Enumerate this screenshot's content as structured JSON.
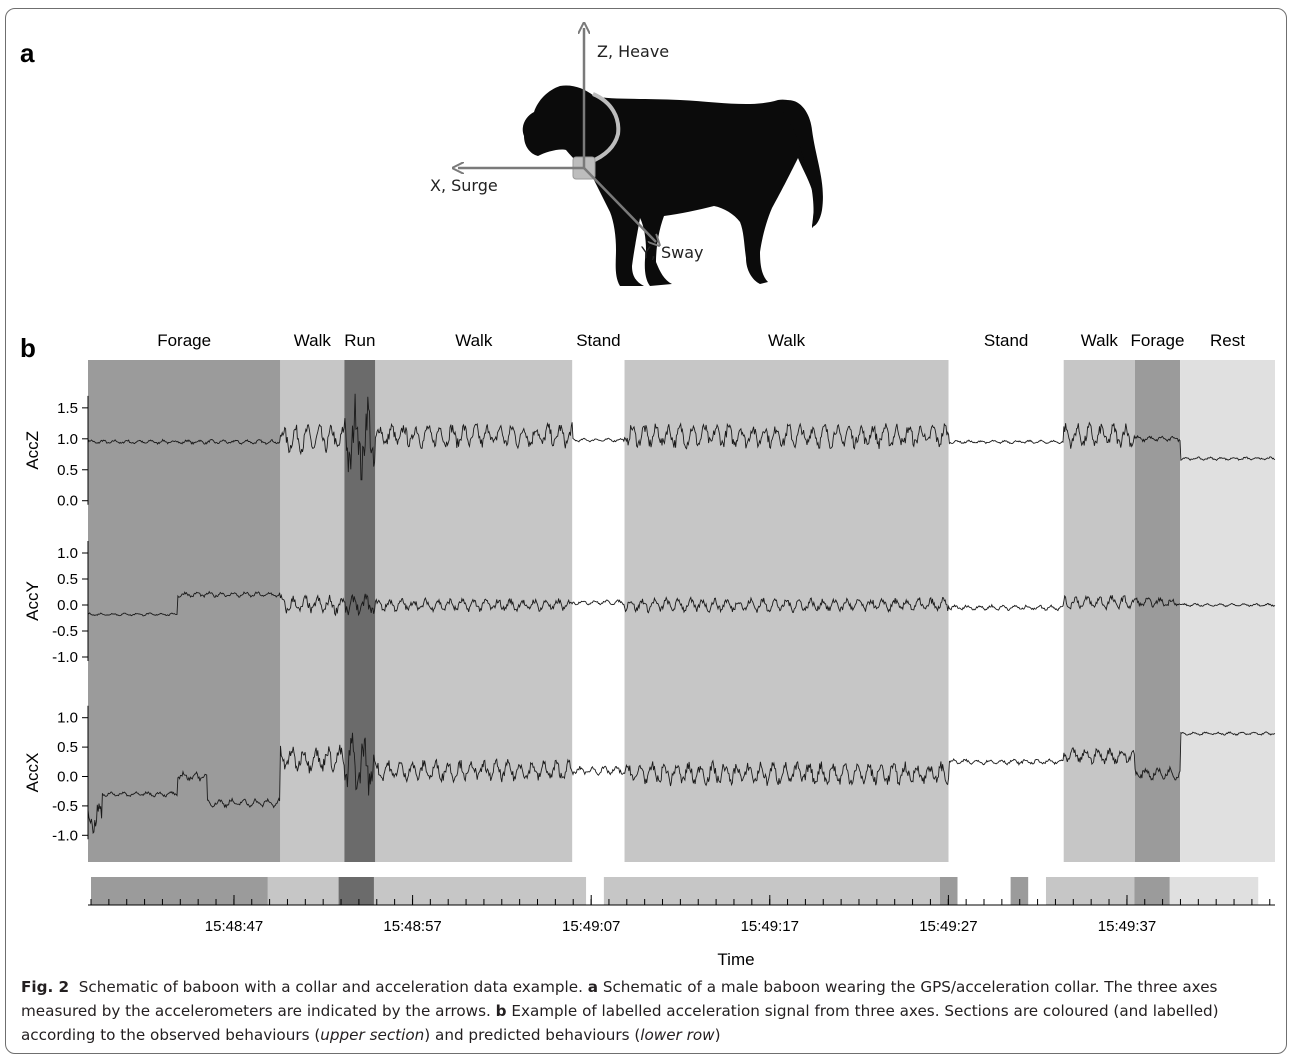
{
  "panel_a": {
    "label": "a",
    "axes": {
      "z": "Z, Heave",
      "x": "X, Surge",
      "y": "Y, Sway"
    },
    "icon": "baboon-silhouette"
  },
  "panel_b": {
    "label": "b"
  },
  "chart_data": {
    "type": "line",
    "xlabel": "Time",
    "x_ticks": [
      "15:48:47",
      "15:48:57",
      "15:49:07",
      "15:49:17",
      "15:49:27",
      "15:49:37"
    ],
    "behaviour_segments_observed": [
      {
        "label": "Forage",
        "start": 0.0,
        "end": 0.162,
        "shade": "#9b9b9b"
      },
      {
        "label": "Walk",
        "start": 0.162,
        "end": 0.216,
        "shade": "#c6c6c6"
      },
      {
        "label": "Run",
        "start": 0.216,
        "end": 0.242,
        "shade": "#6b6b6b"
      },
      {
        "label": "Walk",
        "start": 0.242,
        "end": 0.408,
        "shade": "#c6c6c6"
      },
      {
        "label": "Stand",
        "start": 0.408,
        "end": 0.452,
        "shade": "#ffffff"
      },
      {
        "label": "Walk",
        "start": 0.452,
        "end": 0.725,
        "shade": "#c6c6c6"
      },
      {
        "label": "Stand",
        "start": 0.725,
        "end": 0.822,
        "shade": "#ffffff"
      },
      {
        "label": "Walk",
        "start": 0.822,
        "end": 0.882,
        "shade": "#c6c6c6"
      },
      {
        "label": "Forage",
        "start": 0.882,
        "end": 0.92,
        "shade": "#9b9b9b"
      },
      {
        "label": "Rest",
        "start": 0.92,
        "end": 1.0,
        "shade": "#e0e0e0"
      }
    ],
    "behaviour_segments_predicted": [
      {
        "start": 0.0,
        "end": 0.15,
        "shade": "#9b9b9b"
      },
      {
        "start": 0.15,
        "end": 0.21,
        "shade": "#c6c6c6"
      },
      {
        "start": 0.21,
        "end": 0.24,
        "shade": "#6b6b6b"
      },
      {
        "start": 0.24,
        "end": 0.42,
        "shade": "#c6c6c6"
      },
      {
        "start": 0.42,
        "end": 0.435,
        "shade": "#ffffff"
      },
      {
        "start": 0.435,
        "end": 0.72,
        "shade": "#c6c6c6"
      },
      {
        "start": 0.72,
        "end": 0.735,
        "shade": "#9b9b9b"
      },
      {
        "start": 0.735,
        "end": 0.78,
        "shade": "#ffffff"
      },
      {
        "start": 0.78,
        "end": 0.795,
        "shade": "#9b9b9b"
      },
      {
        "start": 0.795,
        "end": 0.81,
        "shade": "#ffffff"
      },
      {
        "start": 0.81,
        "end": 0.885,
        "shade": "#c6c6c6"
      },
      {
        "start": 0.885,
        "end": 0.915,
        "shade": "#9b9b9b"
      },
      {
        "start": 0.915,
        "end": 0.99,
        "shade": "#e0e0e0"
      }
    ],
    "series": [
      {
        "name": "AccZ",
        "ticks": [
          "1.5",
          "1.0",
          "0.5",
          "0.0"
        ],
        "tick_values": [
          1.5,
          1.0,
          0.5,
          0.0
        ],
        "ylim": [
          -0.15,
          1.95
        ],
        "profile": [
          {
            "start": 0.0,
            "end": 0.162,
            "level": 0.95,
            "amp": 0.04
          },
          {
            "start": 0.162,
            "end": 0.216,
            "level": 1.0,
            "amp": 0.25
          },
          {
            "start": 0.216,
            "end": 0.242,
            "level": 1.0,
            "amp": 0.8
          },
          {
            "start": 0.242,
            "end": 0.408,
            "level": 1.05,
            "amp": 0.22
          },
          {
            "start": 0.408,
            "end": 0.452,
            "level": 0.98,
            "amp": 0.03
          },
          {
            "start": 0.452,
            "end": 0.725,
            "level": 1.05,
            "amp": 0.22
          },
          {
            "start": 0.725,
            "end": 0.822,
            "level": 0.95,
            "amp": 0.03
          },
          {
            "start": 0.822,
            "end": 0.882,
            "level": 1.05,
            "amp": 0.22
          },
          {
            "start": 0.882,
            "end": 0.92,
            "level": 1.0,
            "amp": 0.05
          },
          {
            "start": 0.92,
            "end": 1.0,
            "level": 0.68,
            "amp": 0.03
          }
        ]
      },
      {
        "name": "AccY",
        "ticks": [
          "1.0",
          "0.5",
          "0.0",
          "-0.5",
          "-1.0"
        ],
        "tick_values": [
          1.0,
          0.5,
          0.0,
          -0.5,
          -1.0
        ],
        "ylim": [
          -1.25,
          1.25
        ],
        "profile": [
          {
            "start": 0.0,
            "end": 0.075,
            "level": -0.18,
            "amp": 0.03
          },
          {
            "start": 0.075,
            "end": 0.162,
            "level": 0.2,
            "amp": 0.06
          },
          {
            "start": 0.162,
            "end": 0.216,
            "level": 0.0,
            "amp": 0.2
          },
          {
            "start": 0.216,
            "end": 0.242,
            "level": 0.0,
            "amp": 0.25
          },
          {
            "start": 0.242,
            "end": 0.408,
            "level": 0.0,
            "amp": 0.14
          },
          {
            "start": 0.408,
            "end": 0.452,
            "level": 0.05,
            "amp": 0.05
          },
          {
            "start": 0.452,
            "end": 0.725,
            "level": 0.0,
            "amp": 0.15
          },
          {
            "start": 0.725,
            "end": 0.822,
            "level": -0.05,
            "amp": 0.06
          },
          {
            "start": 0.822,
            "end": 0.882,
            "level": 0.05,
            "amp": 0.15
          },
          {
            "start": 0.882,
            "end": 0.92,
            "level": 0.05,
            "amp": 0.1
          },
          {
            "start": 0.92,
            "end": 1.0,
            "level": 0.0,
            "amp": 0.03
          }
        ]
      },
      {
        "name": "AccX",
        "ticks": [
          "1.0",
          "0.5",
          "0.0",
          "-0.5",
          "-1.0"
        ],
        "tick_values": [
          1.0,
          0.5,
          0.0,
          -0.5,
          -1.0
        ],
        "ylim": [
          -1.25,
          1.25
        ],
        "profile": [
          {
            "start": 0.0,
            "end": 0.012,
            "level": -0.7,
            "amp": 0.3
          },
          {
            "start": 0.012,
            "end": 0.075,
            "level": -0.3,
            "amp": 0.05
          },
          {
            "start": 0.075,
            "end": 0.1,
            "level": 0.0,
            "amp": 0.1
          },
          {
            "start": 0.1,
            "end": 0.162,
            "level": -0.45,
            "amp": 0.08
          },
          {
            "start": 0.162,
            "end": 0.216,
            "level": 0.3,
            "amp": 0.25
          },
          {
            "start": 0.216,
            "end": 0.242,
            "level": 0.2,
            "amp": 0.6
          },
          {
            "start": 0.242,
            "end": 0.408,
            "level": 0.1,
            "amp": 0.2
          },
          {
            "start": 0.408,
            "end": 0.452,
            "level": 0.1,
            "amp": 0.08
          },
          {
            "start": 0.452,
            "end": 0.725,
            "level": 0.05,
            "amp": 0.22
          },
          {
            "start": 0.725,
            "end": 0.822,
            "level": 0.25,
            "amp": 0.05
          },
          {
            "start": 0.822,
            "end": 0.882,
            "level": 0.35,
            "amp": 0.15
          },
          {
            "start": 0.882,
            "end": 0.92,
            "level": 0.05,
            "amp": 0.12
          },
          {
            "start": 0.92,
            "end": 1.0,
            "level": 0.73,
            "amp": 0.03
          }
        ]
      }
    ]
  },
  "caption": {
    "fig_label": "Fig. 2",
    "title": "Schematic of baboon with a collar and acceleration data example.",
    "a_label": "a",
    "a_text": "Schematic of a male baboon wearing the GPS/acceleration collar. The three axes measured by the accelerometers are indicated by the arrows.",
    "b_label": "b",
    "b_text": "Example of labelled acceleration signal from three axes. Sections are coloured (and labelled) according to the observed behaviours (",
    "upper": "upper section",
    "mid": ") and predicted behaviours (",
    "lower": "lower row",
    "end": ")"
  }
}
